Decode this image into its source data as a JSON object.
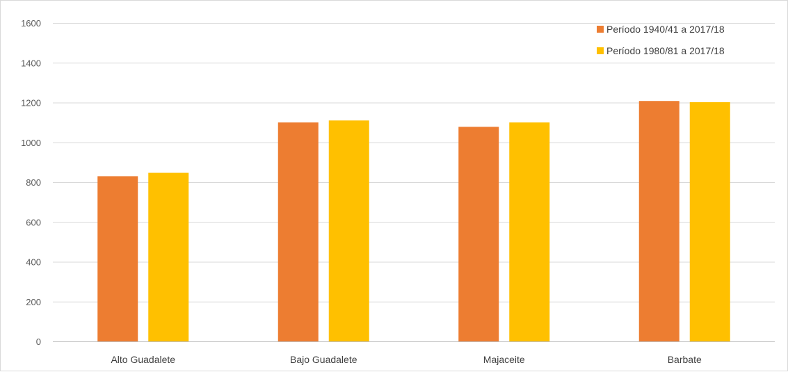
{
  "chart_data": {
    "type": "bar",
    "title": "",
    "xlabel": "",
    "ylabel": "",
    "categories": [
      "Alto Guadalete",
      "Bajo Guadalete",
      "Majaceite",
      "Barbate"
    ],
    "series": [
      {
        "name": "Período 1940/41 a 2017/18",
        "color": "#ED7D31",
        "values": [
          830,
          1100,
          1078,
          1208
        ]
      },
      {
        "name": "Período 1980/81 a 2017/18",
        "color": "#FFC000",
        "values": [
          847,
          1110,
          1100,
          1202
        ]
      }
    ],
    "ylim": [
      0,
      1600
    ],
    "yticks": [
      0,
      200,
      400,
      600,
      800,
      1000,
      1200,
      1400,
      1600
    ],
    "ytick_labels": [
      "0",
      "200",
      "400",
      "600",
      "800",
      "1000",
      "1200",
      "1400",
      "1600"
    ],
    "grid": true,
    "legend_position": "top-right",
    "gridline_color": "#d9d9d9",
    "axis_color": "#bfbfbf"
  }
}
